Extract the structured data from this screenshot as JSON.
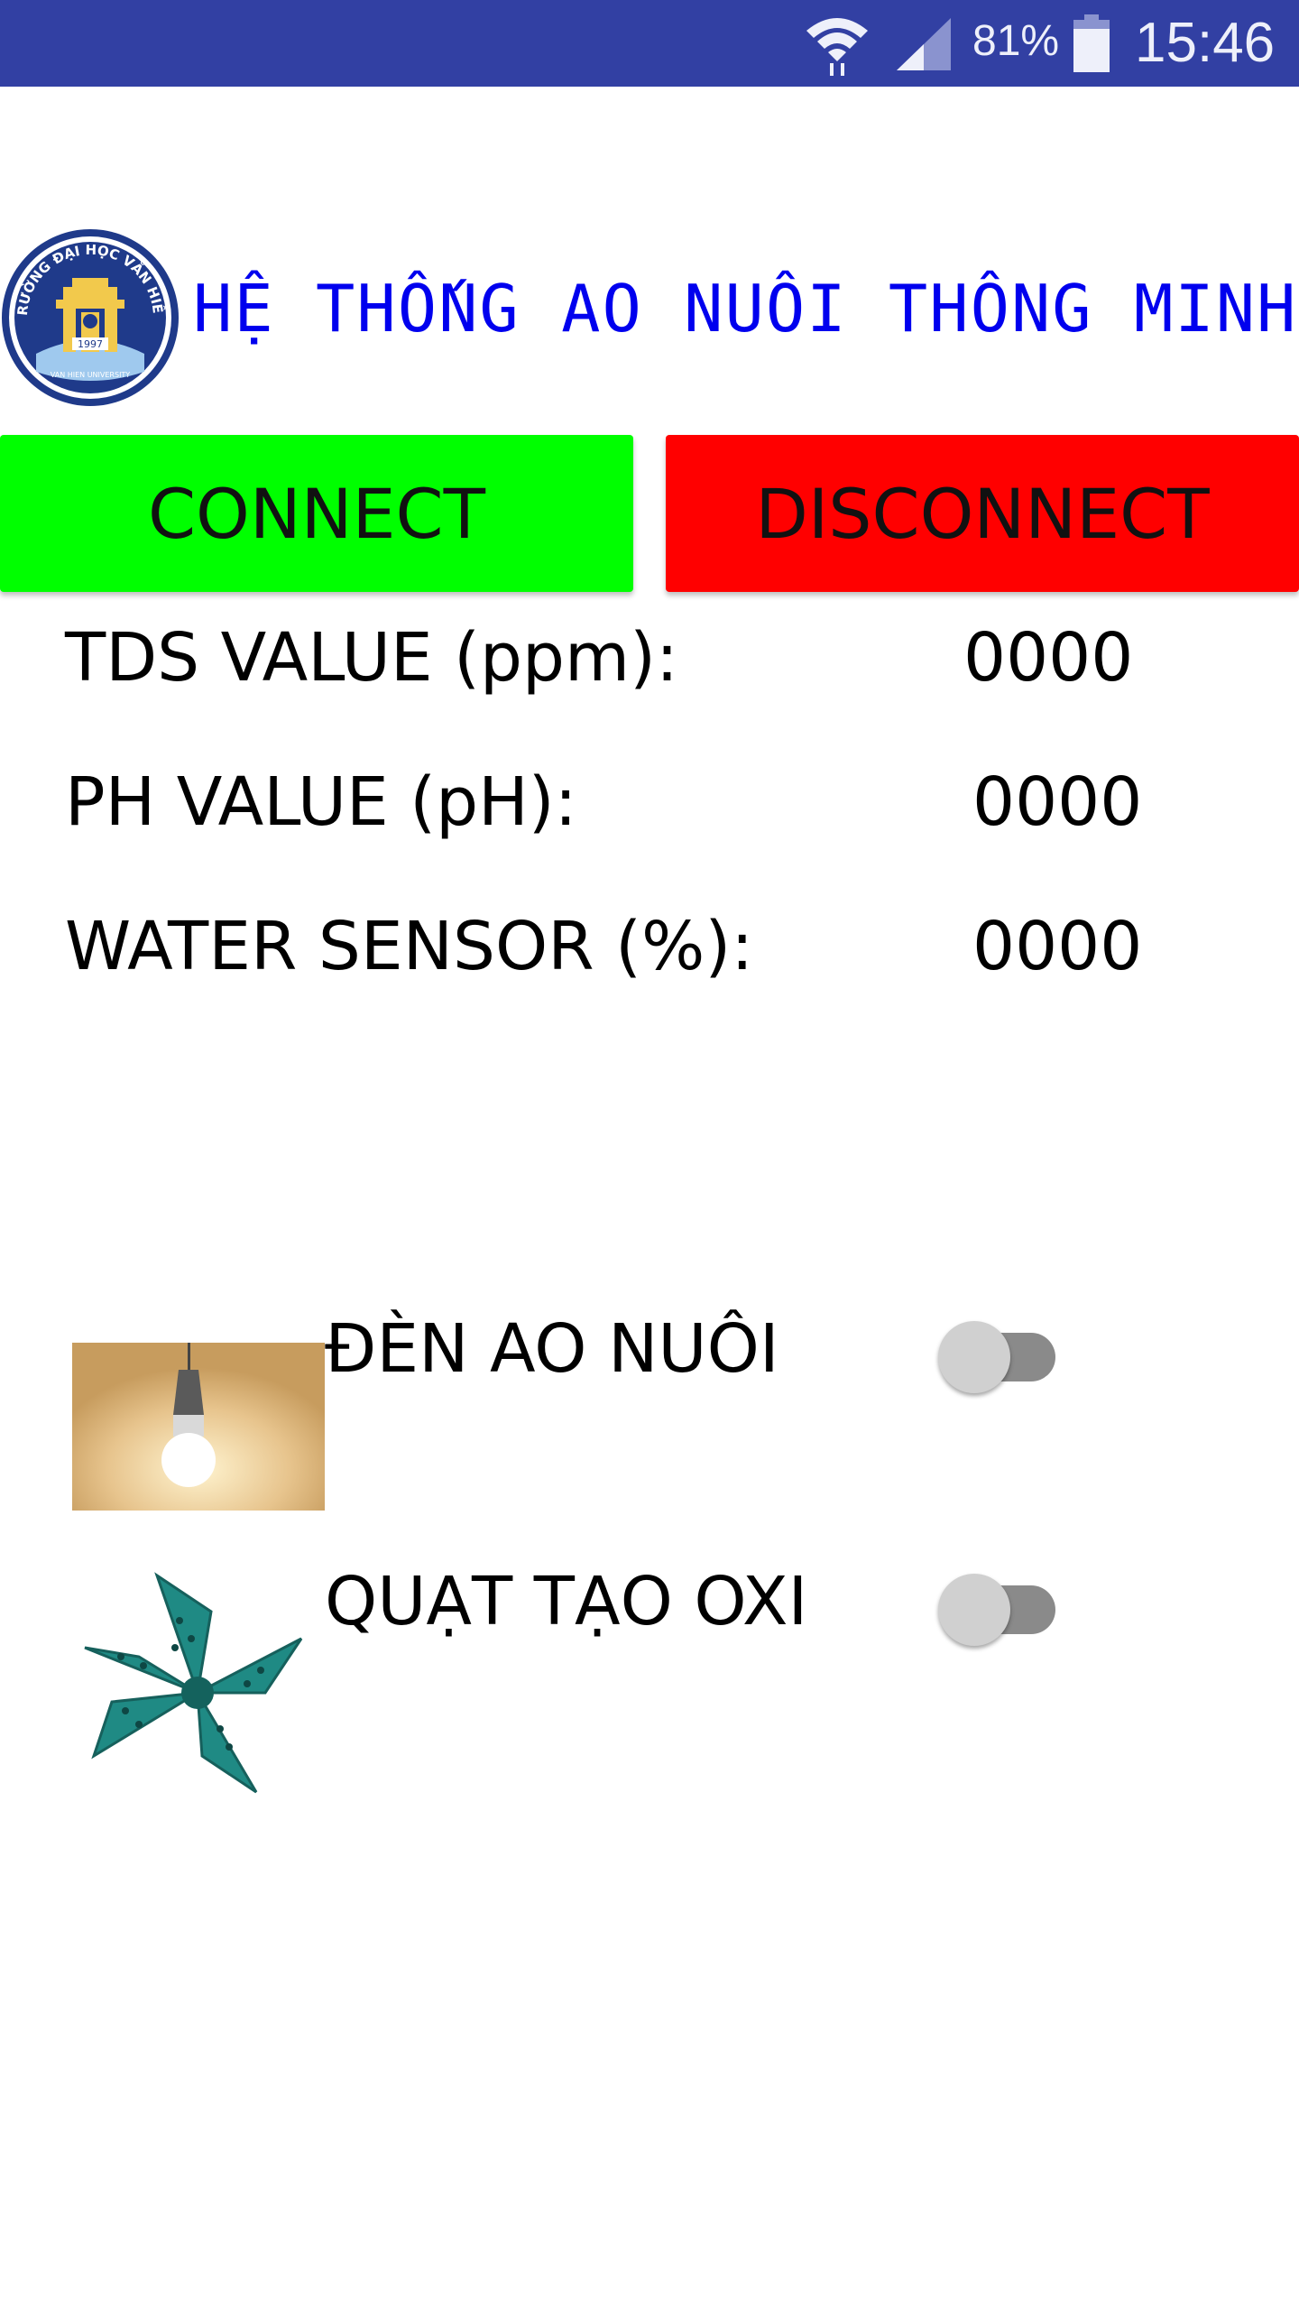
{
  "status_bar": {
    "battery_percent": "81%",
    "time": "15:46"
  },
  "header": {
    "title": "HỆ THỐNG AO NUÔI THÔNG MINH",
    "logo": {
      "top_text": "TRƯỜNG ĐẠI HỌC VĂN HIẾN",
      "year": "1997",
      "bottom_text": "VAN HIEN UNIVERSITY"
    }
  },
  "buttons": {
    "connect": "CONNECT",
    "disconnect": "DISCONNECT"
  },
  "readings": [
    {
      "label": "TDS VALUE (ppm):",
      "value": "0000"
    },
    {
      "label": "PH VALUE (pH):",
      "value": "0000"
    },
    {
      "label": "WATER SENSOR (%):",
      "value": "0000"
    }
  ],
  "devices": [
    {
      "label": "ĐÈN AO NUÔI",
      "icon": "light-bulb-icon",
      "on": false
    },
    {
      "label": "QUẠT TẠO OXI",
      "icon": "aerator-fan-icon",
      "on": false
    }
  ],
  "colors": {
    "status_bar": "#3240a3",
    "title": "#0000ee",
    "connect": "#00ff00",
    "disconnect": "#ff0000"
  }
}
